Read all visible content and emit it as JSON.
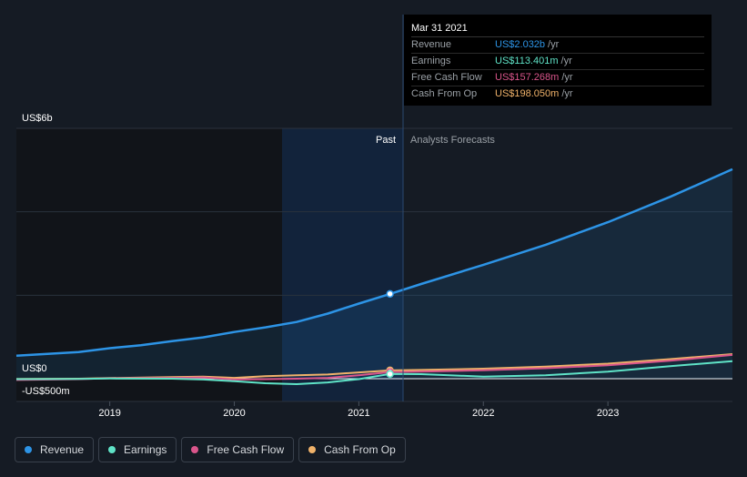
{
  "tooltip": {
    "date": "Mar 31 2021",
    "rows": [
      {
        "label": "Revenue",
        "value": "US$2.032b",
        "unit": "/yr",
        "color": "#2d94e6"
      },
      {
        "label": "Earnings",
        "value": "US$113.401m",
        "unit": "/yr",
        "color": "#5fe3c7"
      },
      {
        "label": "Free Cash Flow",
        "value": "US$157.268m",
        "unit": "/yr",
        "color": "#d9558b"
      },
      {
        "label": "Cash From Op",
        "value": "US$198.050m",
        "unit": "/yr",
        "color": "#f0b26a"
      }
    ]
  },
  "legend": [
    {
      "label": "Revenue",
      "color": "#2d94e6"
    },
    {
      "label": "Earnings",
      "color": "#5fe3c7"
    },
    {
      "label": "Free Cash Flow",
      "color": "#d9558b"
    },
    {
      "label": "Cash From Op",
      "color": "#f0b26a"
    }
  ],
  "chart_data": {
    "type": "line",
    "ylabels": {
      "top": "US$6b",
      "zero": "US$0",
      "bottom": "-US$500m"
    },
    "ylim": [
      -500,
      6000
    ],
    "xlim": [
      2018.25,
      2024.0
    ],
    "xticks": [
      "2019",
      "2020",
      "2021",
      "2022",
      "2023"
    ],
    "past_label": "Past",
    "forecast_label": "Analysts Forecasts",
    "present_x": 2021.25,
    "series": [
      {
        "name": "Revenue",
        "color": "#2d94e6",
        "points": [
          [
            2018.25,
            550
          ],
          [
            2018.75,
            640
          ],
          [
            2019.0,
            730
          ],
          [
            2019.25,
            800
          ],
          [
            2019.5,
            900
          ],
          [
            2019.75,
            990
          ],
          [
            2020.0,
            1120
          ],
          [
            2020.25,
            1230
          ],
          [
            2020.5,
            1360
          ],
          [
            2020.75,
            1560
          ],
          [
            2021.0,
            1800
          ],
          [
            2021.25,
            2032
          ],
          [
            2021.5,
            2270
          ],
          [
            2022.0,
            2730
          ],
          [
            2022.5,
            3210
          ],
          [
            2023.0,
            3750
          ],
          [
            2023.5,
            4360
          ],
          [
            2024.0,
            5020
          ]
        ]
      },
      {
        "name": "Earnings",
        "color": "#5fe3c7",
        "points": [
          [
            2018.25,
            -10
          ],
          [
            2018.75,
            -5
          ],
          [
            2019.0,
            5
          ],
          [
            2019.5,
            0
          ],
          [
            2019.75,
            -20
          ],
          [
            2020.0,
            -60
          ],
          [
            2020.25,
            -110
          ],
          [
            2020.5,
            -130
          ],
          [
            2020.75,
            -90
          ],
          [
            2021.0,
            -10
          ],
          [
            2021.25,
            113
          ],
          [
            2021.5,
            110
          ],
          [
            2022.0,
            50
          ],
          [
            2022.5,
            80
          ],
          [
            2023.0,
            170
          ],
          [
            2023.5,
            300
          ],
          [
            2024.0,
            420
          ]
        ]
      },
      {
        "name": "Free Cash Flow",
        "color": "#d9558b",
        "points": [
          [
            2018.25,
            -30
          ],
          [
            2018.75,
            -10
          ],
          [
            2019.0,
            10
          ],
          [
            2019.5,
            20
          ],
          [
            2019.75,
            30
          ],
          [
            2020.0,
            -20
          ],
          [
            2020.25,
            -10
          ],
          [
            2020.5,
            0
          ],
          [
            2020.75,
            20
          ],
          [
            2021.0,
            80
          ],
          [
            2021.25,
            157
          ],
          [
            2021.5,
            170
          ],
          [
            2022.0,
            200
          ],
          [
            2022.5,
            250
          ],
          [
            2023.0,
            320
          ],
          [
            2023.5,
            430
          ],
          [
            2024.0,
            570
          ]
        ]
      },
      {
        "name": "Cash From Op",
        "color": "#f0b26a",
        "points": [
          [
            2018.25,
            -5
          ],
          [
            2018.75,
            0
          ],
          [
            2019.0,
            15
          ],
          [
            2019.5,
            40
          ],
          [
            2019.75,
            50
          ],
          [
            2020.0,
            20
          ],
          [
            2020.25,
            60
          ],
          [
            2020.5,
            80
          ],
          [
            2020.75,
            100
          ],
          [
            2021.0,
            150
          ],
          [
            2021.25,
            198
          ],
          [
            2021.5,
            210
          ],
          [
            2022.0,
            240
          ],
          [
            2022.5,
            290
          ],
          [
            2023.0,
            360
          ],
          [
            2023.5,
            470
          ],
          [
            2024.0,
            590
          ]
        ]
      }
    ]
  }
}
